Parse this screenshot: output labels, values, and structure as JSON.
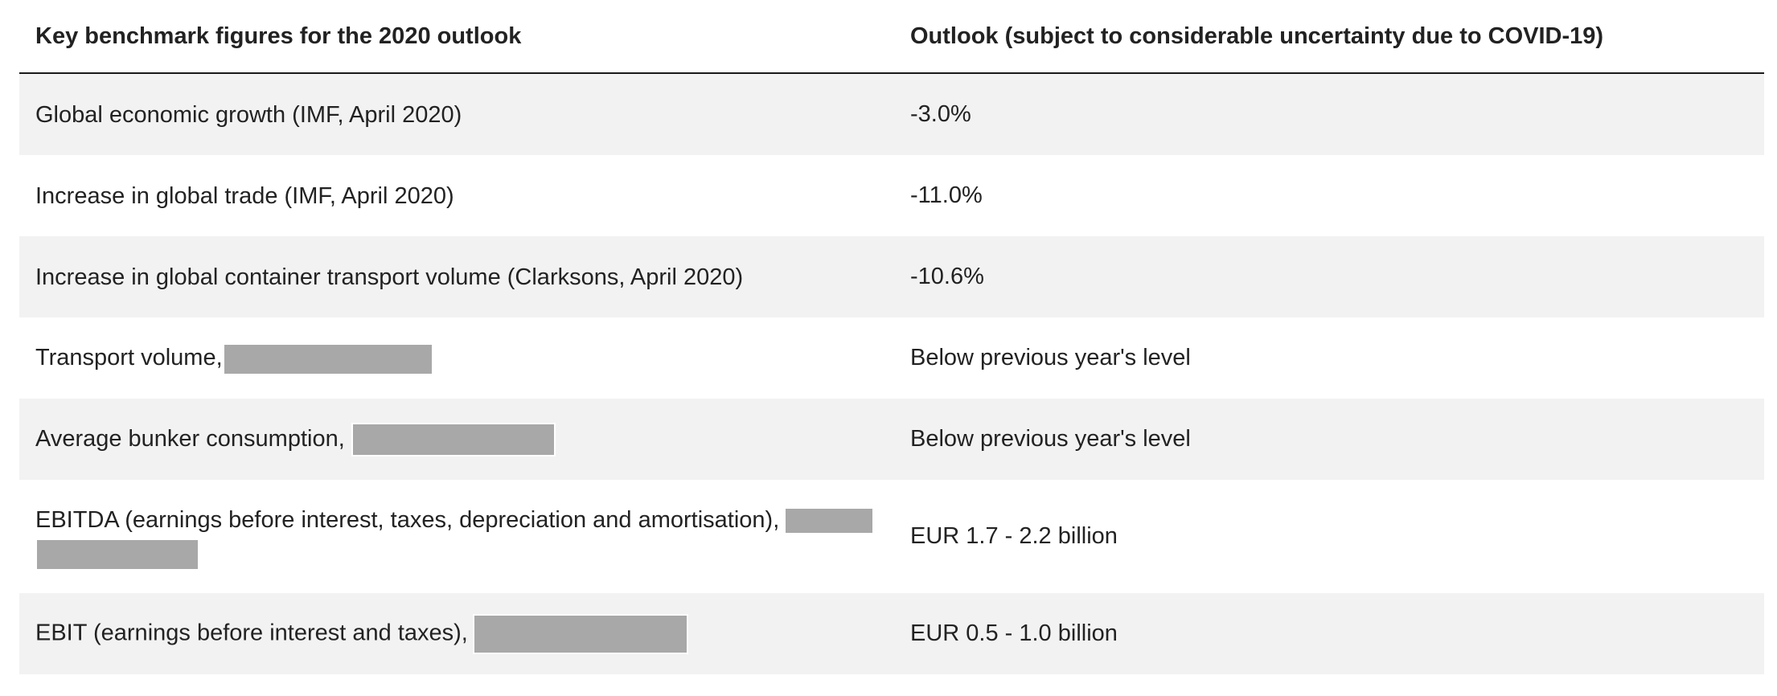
{
  "header": {
    "left": "Key benchmark figures for the 2020 outlook",
    "right": "Outlook (subject to considerable uncertainty due to COVID-19)"
  },
  "rows": [
    {
      "label": "Global economic growth (IMF, April 2020)",
      "value": "-3.0%"
    },
    {
      "label": "Increase in global trade (IMF, April 2020)",
      "value": "-11.0%"
    },
    {
      "label": "Increase in global container transport volume (Clarksons, April 2020)",
      "value": "-10.6%"
    },
    {
      "label": "Transport volume,",
      "value": "Below previous year's level"
    },
    {
      "label": "Average bunker consumption,",
      "value": "Below previous year's level"
    },
    {
      "label": "EBITDA (earnings before interest, taxes, depreciation and amortisation),",
      "value": "EUR 1.7 - 2.2 billion"
    },
    {
      "label": "EBIT (earnings before interest and taxes),",
      "value": "EUR 0.5 - 1.0 billion"
    }
  ]
}
